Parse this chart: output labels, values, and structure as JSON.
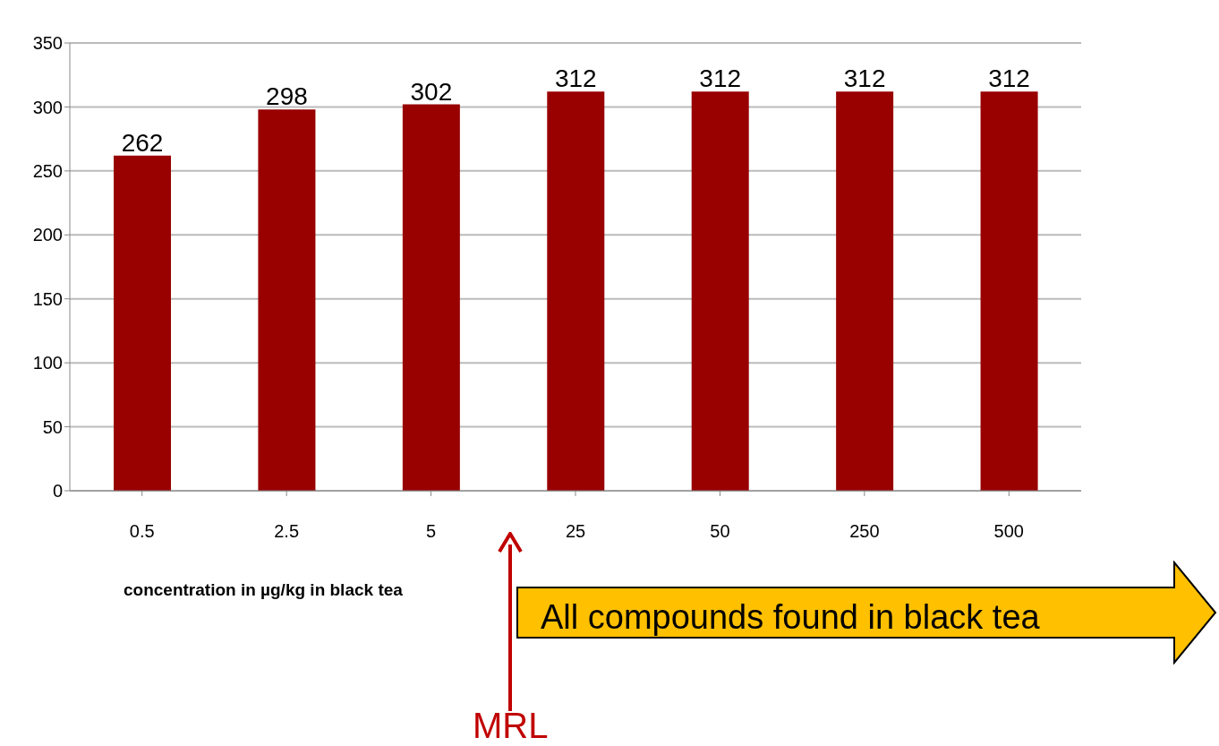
{
  "chart_data": {
    "type": "bar",
    "xlabel": "concentration  in µg/kg in black tea",
    "categories": [
      "0.5",
      "2.5",
      "5",
      "25",
      "50",
      "250",
      "500"
    ],
    "values": [
      262,
      298,
      302,
      312,
      312,
      312,
      312
    ],
    "color": "#990000",
    "data_labels": true,
    "ylim": [
      0,
      350
    ],
    "yticks": [
      0,
      50,
      100,
      150,
      200,
      250,
      300,
      350
    ],
    "grid": "y",
    "annotations": [
      "MRL",
      "All compounds found in black tea"
    ]
  }
}
